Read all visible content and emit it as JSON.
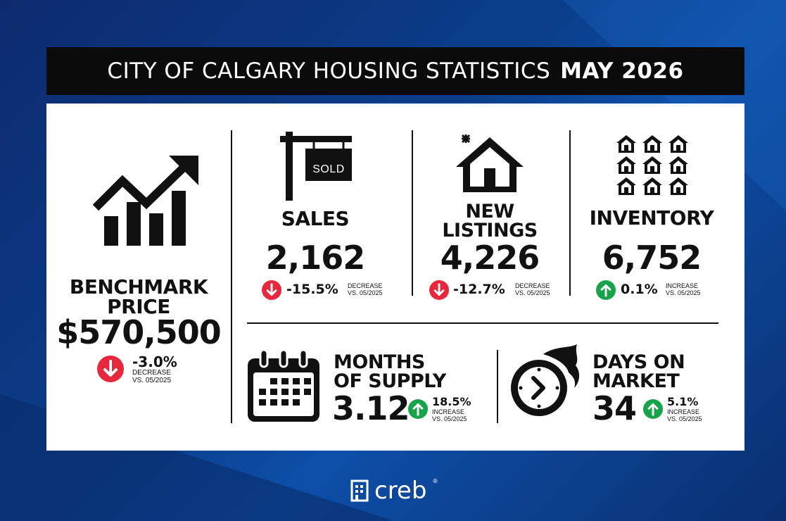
{
  "header": {
    "title": "CITY OF CALGARY HOUSING STATISTICS",
    "date": "MAY 2026"
  },
  "benchmark": {
    "label_line1": "BENCHMARK",
    "label_line2": "PRICE",
    "value": "$570,500",
    "change": "-3.0%",
    "direction_text": "DECREASE",
    "compare": "VS. 05/2025",
    "trend": "down",
    "icon": "growth-chart-icon"
  },
  "sales": {
    "label": "SALES",
    "value": "2,162",
    "change": "-15.5%",
    "direction_text": "DECREASE",
    "compare": "VS. 05/2025",
    "trend": "down",
    "sign_text": "SOLD",
    "icon": "sold-sign-icon"
  },
  "new_listings": {
    "label_line1": "NEW",
    "label_line2": "LISTINGS",
    "value": "4,226",
    "change": "-12.7%",
    "direction_text": "DECREASE",
    "compare": "VS. 05/2025",
    "trend": "down",
    "icon": "new-house-icon"
  },
  "inventory": {
    "label": "INVENTORY",
    "value": "6,752",
    "change": "0.1%",
    "direction_text": "INCREASE",
    "compare": "VS. 05/2025",
    "trend": "up",
    "icon": "houses-grid-icon"
  },
  "months_supply": {
    "label_line1": "MONTHS",
    "label_line2": "OF SUPPLY",
    "value": "3.12",
    "change": "18.5%",
    "direction_text": "INCREASE",
    "compare": "VS. 05/2025",
    "trend": "up",
    "icon": "calendar-icon"
  },
  "days_on_market": {
    "label_line1": "DAYS ON",
    "label_line2": "MARKET",
    "value": "34",
    "change": "5.1%",
    "direction_text": "INCREASE",
    "compare": "VS. 05/2025",
    "trend": "up",
    "icon": "fast-clock-icon"
  },
  "colors": {
    "decrease": "#e8263c",
    "increase": "#17a34a",
    "ink": "#111111",
    "title_bg": "#0b0b0b"
  },
  "footer": {
    "brand": "creb",
    "registered": "®"
  }
}
